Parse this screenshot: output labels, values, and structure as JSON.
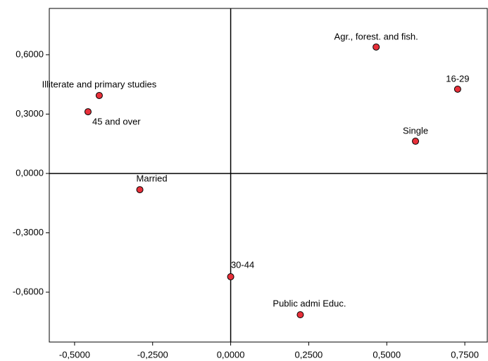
{
  "chart_data": {
    "type": "scatter",
    "x": [
      0.466,
      0.727,
      0.592,
      -0.421,
      -0.457,
      -0.291,
      0.0,
      0.223
    ],
    "values": [
      0.639,
      0.426,
      0.163,
      0.394,
      0.312,
      -0.082,
      -0.522,
      -0.714
    ],
    "labels": [
      "Agr., forest. and fish.",
      "16-29",
      "Single",
      "Illiterate and primary studies",
      "45 and over",
      "Married",
      "30-44",
      "Public admi Educ."
    ],
    "color": "#e8303a",
    "xlim": [
      -0.581,
      0.822
    ],
    "ylim": [
      -0.852,
      0.834
    ],
    "xticks": [
      {
        "value": -0.5,
        "label": "-0,5000"
      },
      {
        "value": -0.25,
        "label": "-0,2500"
      },
      {
        "value": 0,
        "label": "0,0000"
      },
      {
        "value": 0.25,
        "label": "0,2500"
      },
      {
        "value": 0.5,
        "label": "0,5000"
      },
      {
        "value": 0.75,
        "label": "0,7500"
      }
    ],
    "yticks": [
      {
        "value": -0.6,
        "label": "-0,6000"
      },
      {
        "value": -0.3,
        "label": "-0,3000"
      },
      {
        "value": 0,
        "label": "0,0000"
      },
      {
        "value": 0.3,
        "label": "0,3000"
      },
      {
        "value": 0.6,
        "label": "0,6000"
      }
    ]
  }
}
